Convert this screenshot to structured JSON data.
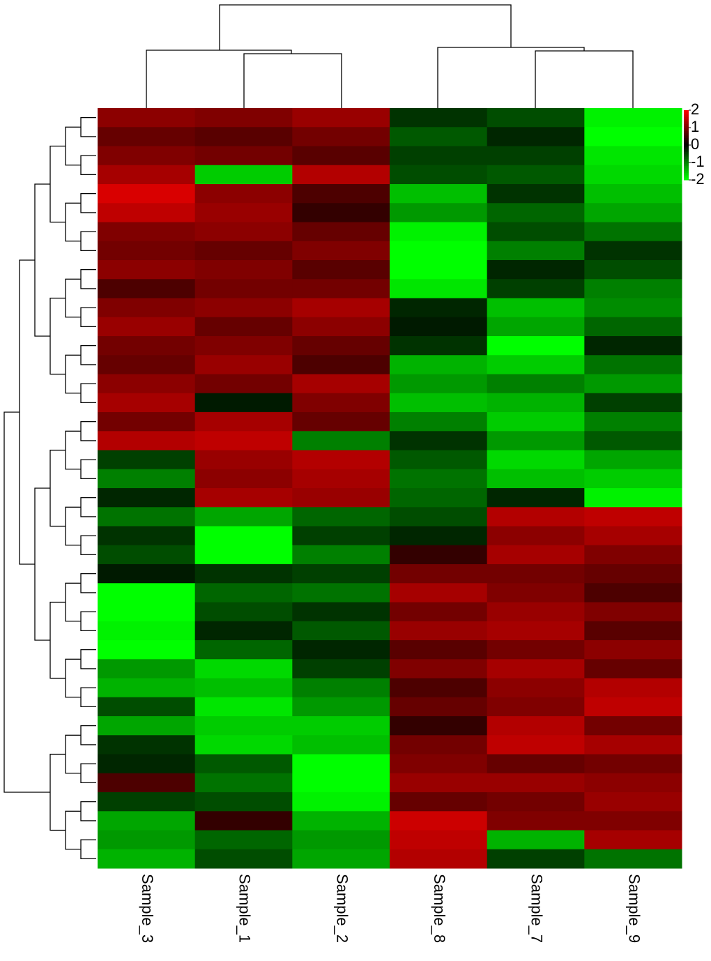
{
  "chart_data": {
    "type": "heatmap",
    "categories": [
      "Sample_3",
      "Sample_1",
      "Sample_2",
      "Sample_8",
      "Sample_7",
      "Sample_9"
    ],
    "values": [
      [
        1.1,
        1.0,
        1.2,
        -0.4,
        -0.6,
        -1.9
      ],
      [
        0.8,
        0.7,
        0.9,
        -0.7,
        -0.3,
        -2.0
      ],
      [
        1.0,
        0.9,
        0.7,
        -0.5,
        -0.5,
        -1.8
      ],
      [
        1.3,
        -1.6,
        1.4,
        -0.6,
        -0.7,
        -1.7
      ],
      [
        1.7,
        1.1,
        0.6,
        -1.5,
        -0.4,
        -1.5
      ],
      [
        1.5,
        1.2,
        0.4,
        -1.2,
        -0.8,
        -1.3
      ],
      [
        1.0,
        1.1,
        0.8,
        -1.9,
        -0.6,
        -0.9
      ],
      [
        0.9,
        0.8,
        1.0,
        -2.0,
        -1.0,
        -0.4
      ],
      [
        1.1,
        1.0,
        0.7,
        -2.0,
        -0.3,
        -0.6
      ],
      [
        0.6,
        0.9,
        0.9,
        -1.8,
        -0.5,
        -1.0
      ],
      [
        1.0,
        1.1,
        1.3,
        -0.3,
        -1.5,
        -1.1
      ],
      [
        1.2,
        0.8,
        1.1,
        -0.2,
        -1.3,
        -0.8
      ],
      [
        0.9,
        1.0,
        0.8,
        -0.4,
        -2.0,
        -0.3
      ],
      [
        0.8,
        1.2,
        0.6,
        -1.4,
        -1.6,
        -0.9
      ],
      [
        1.1,
        0.9,
        1.3,
        -1.2,
        -1.0,
        -1.2
      ],
      [
        1.3,
        -0.2,
        1.0,
        -1.5,
        -1.4,
        -0.5
      ],
      [
        0.9,
        1.3,
        0.8,
        -1.0,
        -1.6,
        -1.0
      ],
      [
        1.4,
        1.5,
        -1.0,
        -0.4,
        -1.2,
        -0.7
      ],
      [
        -0.5,
        1.2,
        1.4,
        -0.7,
        -1.7,
        -1.3
      ],
      [
        -1.0,
        1.1,
        1.3,
        -0.9,
        -1.5,
        -1.6
      ],
      [
        -0.3,
        1.3,
        1.2,
        -0.8,
        -0.3,
        -1.9
      ],
      [
        -0.9,
        -1.3,
        -0.8,
        -0.6,
        1.4,
        1.5
      ],
      [
        -0.4,
        -2.0,
        -0.5,
        -0.3,
        1.1,
        1.3
      ],
      [
        -0.6,
        -2.0,
        -1.0,
        0.4,
        1.3,
        1.0
      ],
      [
        -0.2,
        -0.4,
        -0.5,
        0.9,
        0.9,
        0.8
      ],
      [
        -2.0,
        -0.8,
        -0.9,
        1.3,
        1.0,
        0.6
      ],
      [
        -2.0,
        -0.6,
        -0.4,
        0.9,
        1.2,
        1.0
      ],
      [
        -1.9,
        -0.3,
        -0.7,
        1.2,
        1.3,
        0.7
      ],
      [
        -2.0,
        -0.8,
        -0.3,
        0.7,
        0.9,
        1.1
      ],
      [
        -1.2,
        -1.7,
        -0.5,
        1.0,
        1.3,
        0.8
      ],
      [
        -1.4,
        -1.5,
        -1.0,
        0.6,
        1.1,
        1.4
      ],
      [
        -0.6,
        -1.8,
        -1.2,
        0.8,
        1.0,
        1.5
      ],
      [
        -1.3,
        -1.6,
        -1.6,
        0.4,
        1.4,
        0.9
      ],
      [
        -0.4,
        -1.7,
        -1.5,
        0.9,
        1.5,
        1.3
      ],
      [
        -0.3,
        -0.7,
        -2.0,
        1.0,
        0.8,
        0.9
      ],
      [
        0.6,
        -0.9,
        -2.0,
        1.2,
        1.2,
        1.1
      ],
      [
        -0.5,
        -0.6,
        -1.9,
        0.8,
        0.9,
        1.2
      ],
      [
        -1.3,
        0.4,
        -1.4,
        1.6,
        1.0,
        1.0
      ],
      [
        -1.2,
        -0.8,
        -1.2,
        1.5,
        -1.4,
        1.3
      ],
      [
        -1.4,
        -0.6,
        -1.3,
        1.4,
        -0.5,
        -0.9
      ]
    ],
    "colors": [
      "#00ff00",
      "#000000",
      "#ff0000"
    ],
    "zlim": [
      -2,
      2
    ],
    "zticks": [
      2,
      1,
      0,
      -1,
      -2
    ]
  }
}
